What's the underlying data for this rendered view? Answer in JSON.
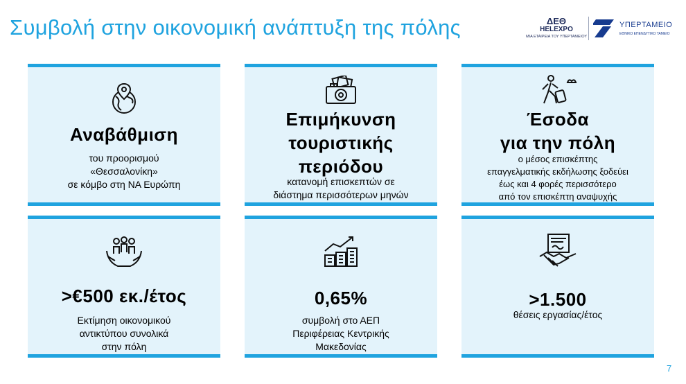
{
  "slide": {
    "title": "Συμβολή στην οικονομική ανάπτυξη της πόλης",
    "page_number": "7"
  },
  "logos": {
    "deth": {
      "line1": "ΔΕΘ",
      "line2": "HELEXPO",
      "line3": "ΜΙΑ ΕΤΑΙΡΕΙΑ ΤΟΥ ΥΠΕΡΤΑΜΕΙΟΥ"
    },
    "ypertameio": {
      "name": "ΥΠΕΡΤΑΜΕΙΟ",
      "subtitle": "ΕΘΝΙΚΟ ΕΠΕΝΔΥΤΙΚΟ ΤΑΜΕΙΟ"
    }
  },
  "colors": {
    "accent": "#1fa3df",
    "card_bg": "#e3f3fb",
    "logo_navy": "#1d2a5a"
  },
  "cards": [
    {
      "icon": "globe-pin-icon",
      "headline": "Αναβάθμιση",
      "desc": [
        "του προορισμού",
        "«Θεσσαλονίκη»",
        "σε κόμβο στη ΝΑ Ευρώπη"
      ]
    },
    {
      "icon": "camera-photos-icon",
      "headline": [
        "Επιμήκυνση",
        "τουριστικής",
        "περιόδου"
      ],
      "desc": [
        "κατανομή επισκεπτών σε",
        "διάστημα περισσότερων μηνών"
      ]
    },
    {
      "icon": "traveler-luggage-icon",
      "headline": [
        "Έσοδα",
        "για την πόλη"
      ],
      "desc": [
        "ο μέσος επισκέπτης",
        "επαγγελματικής εκδήλωσης ξοδεύει",
        "έως και 4 φορές περισσότερο",
        "από τον επισκέπτη αναψυχής"
      ]
    },
    {
      "icon": "hands-people-icon",
      "headline": ">€500 εκ./έτος",
      "desc": [
        "Εκτίμηση οικονομικού",
        "αντικτύπου συνολικά",
        "στην πόλη"
      ]
    },
    {
      "icon": "buildings-growth-icon",
      "headline": "0,65%",
      "desc": [
        "συμβολή στο ΑΕΠ",
        "Περιφέρειας Κεντρικής",
        "Μακεδονίας"
      ]
    },
    {
      "icon": "handshake-contract-icon",
      "headline": ">1.500",
      "desc": [
        "θέσεις εργασίας/έτος"
      ]
    }
  ]
}
